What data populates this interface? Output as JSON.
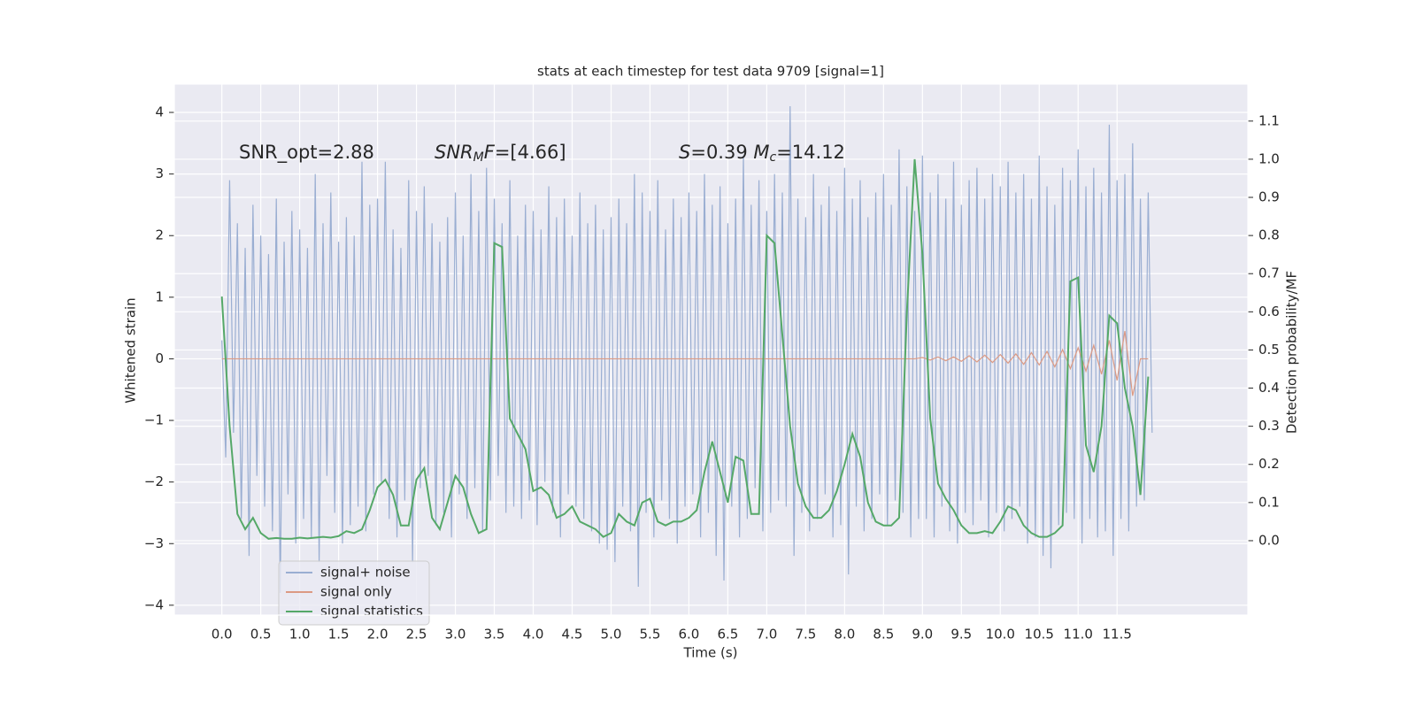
{
  "chart_data": {
    "type": "line",
    "title": "stats at each timestep for test data 9709 [signal=1]",
    "xlabel": "Time (s)",
    "ylabel": "Whitened strain",
    "y2label": "Detection probability/MF",
    "xlim": [
      -0.61,
      13.18
    ],
    "ylim": [
      -4.16,
      4.46
    ],
    "y2lim": [
      -0.195,
      1.197
    ],
    "xticks": [
      {
        "value": 0,
        "label": "0.0"
      },
      0.5,
      {
        "value": 1,
        "label": "1.0"
      },
      1.5,
      {
        "value": 2,
        "label": "2.0"
      },
      2.5,
      {
        "value": 3,
        "label": "3.0"
      },
      3.5,
      {
        "value": 4,
        "label": "4.0"
      },
      4.5,
      {
        "value": 5,
        "label": "5.0"
      },
      5.5,
      {
        "value": 6,
        "label": "6.0"
      },
      6.5,
      {
        "value": 7,
        "label": "7.0"
      },
      7.5,
      {
        "value": 8,
        "label": "8.0"
      },
      8.5,
      {
        "value": 9,
        "label": "9.0"
      },
      9.5,
      {
        "value": 10,
        "label": "10.0"
      },
      10.5,
      {
        "value": 11,
        "label": "11.0"
      },
      11.5
    ],
    "yticks": [
      {
        "value": -4,
        "label": "−4"
      },
      {
        "value": -3,
        "label": "−3"
      },
      {
        "value": -2,
        "label": "−2"
      },
      {
        "value": -1,
        "label": "−1"
      },
      0,
      1,
      2,
      3,
      4
    ],
    "y2ticks": [
      {
        "value": 0,
        "label": "0.0"
      },
      0.1,
      0.2,
      0.3,
      0.4,
      0.5,
      0.6,
      0.7,
      0.8,
      0.9,
      {
        "value": 1,
        "label": "1.0"
      },
      1.1
    ],
    "grid": true,
    "legend": "lower left",
    "annotations": [
      [
        {
          "text": "SNR_opt=2.88"
        }
      ],
      [
        {
          "text": "SNR",
          "italic": true
        },
        {
          "text": "M",
          "italic": true,
          "sub": true
        },
        {
          "text": "F",
          "italic": true
        },
        {
          "text": "=[4.66]"
        }
      ],
      [
        {
          "text": "S",
          "italic": true
        },
        {
          "text": "=0.39   "
        },
        {
          "text": "M",
          "italic": true
        },
        {
          "text": "c",
          "italic": true,
          "sub": true
        },
        {
          "text": "=14.12"
        }
      ]
    ],
    "series": [
      {
        "name": "signal+ noise",
        "color": "#9aaed2",
        "axis": "y",
        "x": [
          0,
          0.05,
          0.1,
          0.15,
          0.2,
          0.25,
          0.3,
          0.35,
          0.4,
          0.45,
          0.5,
          0.55,
          0.6,
          0.65,
          0.7,
          0.75,
          0.8,
          0.85,
          0.9,
          0.95,
          1,
          1.05,
          1.1,
          1.15,
          1.2,
          1.25,
          1.3,
          1.35,
          1.4,
          1.45,
          1.5,
          1.55,
          1.6,
          1.65,
          1.7,
          1.75,
          1.8,
          1.85,
          1.9,
          1.95,
          2,
          2.05,
          2.1,
          2.15,
          2.2,
          2.25,
          2.3,
          2.35,
          2.4,
          2.45,
          2.5,
          2.55,
          2.6,
          2.65,
          2.7,
          2.75,
          2.8,
          2.85,
          2.9,
          2.95,
          3,
          3.05,
          3.1,
          3.15,
          3.2,
          3.25,
          3.3,
          3.35,
          3.4,
          3.45,
          3.5,
          3.55,
          3.6,
          3.65,
          3.7,
          3.75,
          3.8,
          3.85,
          3.9,
          3.95,
          4,
          4.05,
          4.1,
          4.15,
          4.2,
          4.25,
          4.3,
          4.35,
          4.4,
          4.45,
          4.5,
          4.55,
          4.6,
          4.65,
          4.7,
          4.75,
          4.8,
          4.85,
          4.9,
          4.95,
          5,
          5.05,
          5.1,
          5.15,
          5.2,
          5.25,
          5.3,
          5.35,
          5.4,
          5.45,
          5.5,
          5.55,
          5.6,
          5.65,
          5.7,
          5.75,
          5.8,
          5.85,
          5.9,
          5.95,
          6,
          6.05,
          6.1,
          6.15,
          6.2,
          6.25,
          6.3,
          6.35,
          6.4,
          6.45,
          6.5,
          6.55,
          6.6,
          6.65,
          6.7,
          6.75,
          6.8,
          6.85,
          6.9,
          6.95,
          7,
          7.05,
          7.1,
          7.15,
          7.2,
          7.25,
          7.3,
          7.35,
          7.4,
          7.45,
          7.5,
          7.55,
          7.6,
          7.65,
          7.7,
          7.75,
          7.8,
          7.85,
          7.9,
          7.95,
          8,
          8.05,
          8.1,
          8.15,
          8.2,
          8.25,
          8.3,
          8.35,
          8.4,
          8.45,
          8.5,
          8.55,
          8.6,
          8.65,
          8.7,
          8.75,
          8.8,
          8.85,
          8.9,
          8.95,
          9,
          9.05,
          9.1,
          9.15,
          9.2,
          9.25,
          9.3,
          9.35,
          9.4,
          9.45,
          9.5,
          9.55,
          9.6,
          9.65,
          9.7,
          9.75,
          9.8,
          9.85,
          9.9,
          9.95,
          10,
          10.05,
          10.1,
          10.15,
          10.2,
          10.25,
          10.3,
          10.35,
          10.4,
          10.45,
          10.5,
          10.55,
          10.6,
          10.65,
          10.7,
          10.75,
          10.8,
          10.85,
          10.9,
          10.95,
          11,
          11.05,
          11.1,
          11.15,
          11.2,
          11.25,
          11.3,
          11.35,
          11.4,
          11.45,
          11.5,
          11.55,
          11.6,
          11.65,
          11.7,
          11.75,
          11.8,
          11.85,
          11.9,
          11.95
        ],
        "values": [
          0.3,
          -1.6,
          2.9,
          -1.2,
          2.2,
          -2.6,
          1.8,
          -3.2,
          2.5,
          -1.9,
          2.0,
          -2.4,
          1.7,
          -2.8,
          2.6,
          -3.8,
          1.9,
          -2.2,
          2.4,
          -3.0,
          2.1,
          -2.6,
          1.8,
          -2.9,
          3.0,
          -3.3,
          2.2,
          -1.9,
          2.7,
          -2.5,
          1.9,
          -3.0,
          2.3,
          -2.7,
          2.0,
          -2.4,
          3.2,
          -2.8,
          2.5,
          -2.2,
          2.6,
          -2.0,
          3.2,
          -2.6,
          2.1,
          -2.9,
          1.8,
          -2.3,
          2.9,
          -3.3,
          2.4,
          -2.1,
          2.8,
          -1.9,
          2.2,
          -2.7,
          1.9,
          -2.5,
          2.3,
          -2.9,
          2.7,
          -2.2,
          2.0,
          -2.6,
          3.0,
          -2.1,
          2.4,
          -2.8,
          3.1,
          -2.3,
          2.6,
          -1.9,
          2.2,
          -2.5,
          2.9,
          -2.4,
          2.0,
          -2.6,
          2.5,
          -2.3,
          2.4,
          -2.7,
          2.1,
          -2.0,
          2.8,
          -2.5,
          2.3,
          -2.9,
          2.6,
          -2.2,
          2.0,
          -2.4,
          2.7,
          -2.6,
          2.2,
          -2.8,
          2.5,
          -3.0,
          2.1,
          -3.1,
          2.3,
          -3.3,
          2.6,
          -2.4,
          2.2,
          -2.8,
          3.0,
          -3.7,
          2.7,
          -2.5,
          2.4,
          -2.9,
          2.9,
          -2.3,
          2.1,
          -2.6,
          2.6,
          -3.0,
          2.3,
          -2.4,
          2.7,
          -2.2,
          2.4,
          -2.9,
          3.0,
          -2.5,
          2.5,
          -3.2,
          2.8,
          -3.6,
          2.2,
          -2.4,
          2.6,
          -2.9,
          3.3,
          -2.6,
          2.5,
          -2.1,
          2.9,
          -2.8,
          2.4,
          -2.5,
          3.0,
          -2.3,
          2.7,
          -2.4,
          4.1,
          -3.2,
          2.6,
          -2.5,
          2.3,
          -2.8,
          3.0,
          -2.6,
          2.5,
          -2.2,
          2.8,
          -2.9,
          2.4,
          -2.7,
          3.1,
          -3.5,
          2.6,
          -2.4,
          2.9,
          -2.8,
          2.3,
          -2.6,
          2.7,
          -2.2,
          3.0,
          -2.7,
          2.5,
          -2.3,
          3.4,
          -2.5,
          2.8,
          -2.9,
          2.4,
          -2.6,
          3.3,
          -2.6,
          2.7,
          -2.9,
          3.0,
          -2.4,
          2.6,
          -2.8,
          3.2,
          -3.0,
          2.5,
          -2.5,
          2.9,
          -2.7,
          3.1,
          -2.3,
          2.6,
          -2.9,
          3.0,
          -2.5,
          2.8,
          -2.8,
          3.2,
          -2.6,
          2.7,
          -2.4,
          3.0,
          -3.0,
          2.6,
          -2.9,
          3.3,
          -3.2,
          2.8,
          -3.4,
          2.5,
          -2.7,
          3.1,
          -2.5,
          2.9,
          -2.6,
          3.4,
          -3.0,
          2.8,
          -2.6,
          3.1,
          -2.9,
          2.7,
          -2.8,
          3.8,
          -3.2,
          2.9,
          -2.6,
          3.0,
          -2.8,
          3.5,
          -2.4,
          2.6,
          -2.3,
          2.7,
          -1.2
        ]
      },
      {
        "name": "signal only",
        "color": "#dc9a84",
        "axis": "y",
        "x": [
          0,
          0.1,
          0.2,
          0.3,
          0.4,
          0.5,
          0.6,
          0.7,
          0.8,
          0.9,
          1,
          1.1,
          1.2,
          1.3,
          1.4,
          1.5,
          1.6,
          1.7,
          1.8,
          1.9,
          2,
          2.1,
          2.2,
          2.3,
          2.4,
          2.5,
          2.6,
          2.7,
          2.8,
          2.9,
          3,
          3.1,
          3.2,
          3.3,
          3.4,
          3.5,
          3.6,
          3.7,
          3.8,
          3.9,
          4,
          4.1,
          4.2,
          4.3,
          4.4,
          4.5,
          4.6,
          4.7,
          4.8,
          4.9,
          5,
          5.1,
          5.2,
          5.3,
          5.4,
          5.5,
          5.6,
          5.7,
          5.8,
          5.9,
          6,
          6.1,
          6.2,
          6.3,
          6.4,
          6.5,
          6.6,
          6.7,
          6.8,
          6.9,
          7,
          7.1,
          7.2,
          7.3,
          7.4,
          7.5,
          7.6,
          7.7,
          7.8,
          7.9,
          8,
          8.1,
          8.2,
          8.3,
          8.4,
          8.5,
          8.6,
          8.7,
          8.8,
          8.9,
          9,
          9.1,
          9.2,
          9.3,
          9.4,
          9.5,
          9.6,
          9.7,
          9.8,
          9.9,
          10,
          10.1,
          10.2,
          10.3,
          10.4,
          10.5,
          10.6,
          10.7,
          10.8,
          10.9,
          11,
          11.1,
          11.2,
          11.3,
          11.4,
          11.5,
          11.6,
          11.7,
          11.8,
          11.9
        ],
        "values": [
          0,
          0,
          0,
          0,
          0,
          0,
          0,
          0,
          0,
          0,
          0,
          0,
          0,
          0,
          0,
          0,
          0,
          0,
          0,
          0,
          0,
          0,
          0,
          0,
          0,
          0,
          0,
          0,
          0,
          0,
          0,
          0,
          0,
          0,
          0,
          0,
          0,
          0,
          0,
          0,
          0,
          0,
          0,
          0,
          0,
          0,
          0,
          0,
          0,
          0,
          0,
          0,
          0,
          0,
          0,
          0,
          0,
          0,
          0,
          0,
          0,
          0,
          0,
          0,
          0,
          0,
          0,
          0,
          0,
          0,
          0,
          0,
          0,
          0,
          0,
          0,
          0,
          0,
          0,
          0,
          0,
          0,
          0,
          0,
          0,
          0,
          0,
          0,
          0,
          0,
          0.02,
          -0.02,
          0.03,
          -0.03,
          0.03,
          -0.04,
          0.05,
          -0.05,
          0.06,
          -0.06,
          0.07,
          -0.07,
          0.08,
          -0.09,
          0.1,
          -0.1,
          0.12,
          -0.13,
          0.15,
          -0.16,
          0.18,
          -0.2,
          0.22,
          -0.25,
          0.3,
          -0.35,
          0.45,
          -0.6,
          0,
          0
        ]
      },
      {
        "name": "signal statistics",
        "color": "#55a868",
        "axis": "y2",
        "x": [
          0,
          0.1,
          0.2,
          0.3,
          0.4,
          0.5,
          0.6,
          0.7,
          0.8,
          0.9,
          1,
          1.1,
          1.2,
          1.3,
          1.4,
          1.5,
          1.6,
          1.7,
          1.8,
          1.9,
          2,
          2.1,
          2.2,
          2.3,
          2.4,
          2.5,
          2.6,
          2.7,
          2.8,
          2.9,
          3,
          3.1,
          3.2,
          3.3,
          3.4,
          3.5,
          3.6,
          3.7,
          3.8,
          3.9,
          4,
          4.1,
          4.2,
          4.3,
          4.4,
          4.5,
          4.6,
          4.7,
          4.8,
          4.9,
          5,
          5.1,
          5.2,
          5.3,
          5.4,
          5.5,
          5.6,
          5.7,
          5.8,
          5.9,
          6,
          6.1,
          6.2,
          6.3,
          6.4,
          6.5,
          6.6,
          6.7,
          6.8,
          6.9,
          7,
          7.1,
          7.2,
          7.3,
          7.4,
          7.5,
          7.6,
          7.7,
          7.8,
          7.9,
          8,
          8.1,
          8.2,
          8.3,
          8.4,
          8.5,
          8.6,
          8.7,
          8.8,
          8.9,
          9,
          9.1,
          9.2,
          9.3,
          9.4,
          9.5,
          9.6,
          9.7,
          9.8,
          9.9,
          10,
          10.1,
          10.2,
          10.3,
          10.4,
          10.5,
          10.6,
          10.7,
          10.8,
          10.9,
          11,
          11.1,
          11.2,
          11.3,
          11.4,
          11.5,
          11.6,
          11.7,
          11.8,
          11.9
        ],
        "values": [
          0.64,
          0.3,
          0.07,
          0.03,
          0.06,
          0.02,
          0.005,
          0.007,
          0.005,
          0.005,
          0.008,
          0.006,
          0.008,
          0.01,
          0.008,
          0.012,
          0.025,
          0.02,
          0.03,
          0.08,
          0.14,
          0.16,
          0.12,
          0.04,
          0.04,
          0.16,
          0.19,
          0.06,
          0.03,
          0.1,
          0.17,
          0.14,
          0.07,
          0.02,
          0.03,
          0.78,
          0.77,
          0.32,
          0.28,
          0.24,
          0.13,
          0.14,
          0.12,
          0.06,
          0.07,
          0.09,
          0.05,
          0.04,
          0.03,
          0.01,
          0.02,
          0.07,
          0.05,
          0.04,
          0.1,
          0.11,
          0.05,
          0.04,
          0.05,
          0.05,
          0.06,
          0.08,
          0.18,
          0.26,
          0.18,
          0.1,
          0.22,
          0.21,
          0.07,
          0.07,
          0.8,
          0.78,
          0.54,
          0.3,
          0.15,
          0.09,
          0.06,
          0.06,
          0.08,
          0.13,
          0.2,
          0.28,
          0.22,
          0.1,
          0.05,
          0.04,
          0.04,
          0.06,
          0.6,
          1.0,
          0.75,
          0.32,
          0.15,
          0.11,
          0.08,
          0.04,
          0.02,
          0.02,
          0.025,
          0.02,
          0.05,
          0.09,
          0.08,
          0.04,
          0.02,
          0.01,
          0.01,
          0.02,
          0.04,
          0.68,
          0.69,
          0.25,
          0.18,
          0.3,
          0.59,
          0.57,
          0.4,
          0.3,
          0.12,
          0.43
        ]
      }
    ]
  }
}
